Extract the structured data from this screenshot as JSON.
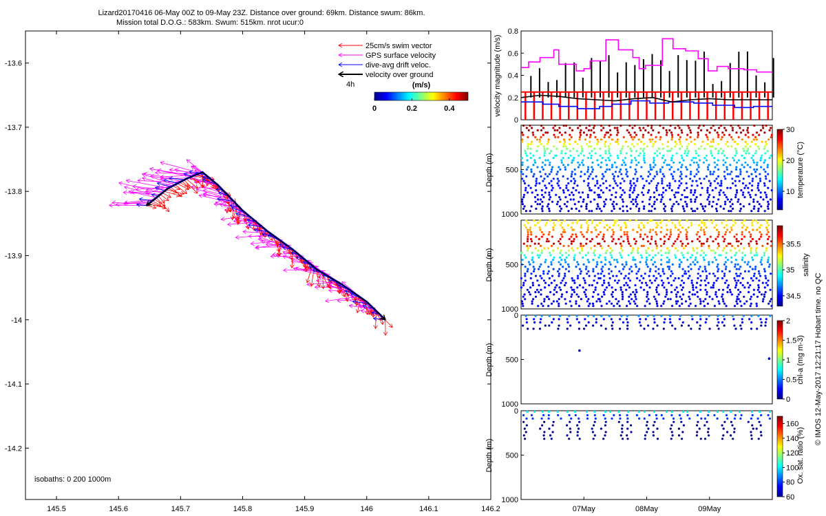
{
  "header": {
    "line1": "Lizard20170416 06-May 00Z to 09-May 23Z. Distance over ground: 69km. Distance swum: 86km.",
    "line2": "Mission total D.O.G.: 583km. Swum: 515km. nrot ucur:0"
  },
  "credit": "© IMOS 12-May-2017 12:21:17 Hobart time. no QC",
  "colors": {
    "swim": "#ff0000",
    "gps": "#ff00ff",
    "drift": "#0000ff",
    "ground": "#000000"
  },
  "chart_data": [
    {
      "type": "scatter",
      "panel": "map",
      "xlim": [
        145.45,
        146.2
      ],
      "ylim": [
        -14.28,
        -13.55
      ],
      "x_ticks": [
        145.5,
        145.6,
        145.7,
        145.8,
        145.9,
        146,
        146.1,
        146.2
      ],
      "x_tick_labels": [
        "145.5",
        "145.6",
        "145.7",
        "145.8",
        "145.9",
        "146",
        "146.1",
        "146.2"
      ],
      "y_ticks": [
        -13.6,
        -13.7,
        -13.8,
        -13.9,
        -14,
        -14.1,
        -14.2
      ],
      "y_tick_labels": [
        "-13.6",
        "-13.7",
        "-13.8",
        "-13.9",
        "-14",
        "-14.1",
        "-14.2"
      ],
      "legend": {
        "placement": "top-right",
        "items": [
          {
            "label": "25cm/s swim vector",
            "color": "#ff0000"
          },
          {
            "label": "GPS surface velocity",
            "color": "#ff00ff"
          },
          {
            "label": "dive-avg drift veloc.",
            "color": "#0000ff"
          },
          {
            "label": "velocity over ground",
            "color": "#000000"
          }
        ],
        "scale_label": "4h"
      },
      "colorbar": {
        "label": "(m/s)",
        "range": [
          0,
          0.5
        ],
        "ticks": [
          0,
          0.2,
          0.4
        ],
        "tick_labels": [
          "0",
          "0.2",
          "0.4"
        ]
      },
      "isobaths_label": "isobaths: 0   200  1000m",
      "track": {
        "lon": [
          145.645,
          145.68,
          145.71,
          145.735,
          145.76,
          145.8,
          145.84,
          145.88,
          145.92,
          145.96,
          146.0,
          146.03
        ],
        "lat": [
          -13.822,
          -13.795,
          -13.78,
          -13.77,
          -13.79,
          -13.83,
          -13.862,
          -13.89,
          -13.922,
          -13.945,
          -13.972,
          -14.0
        ]
      }
    },
    {
      "type": "line",
      "panel": "velocity",
      "ylabel": "velocity magnitude (m/s)",
      "ylim": [
        0,
        0.8
      ],
      "y_ticks": [
        0,
        0.2,
        0.4,
        0.6,
        0.8
      ],
      "y_tick_labels": [
        "0",
        "0.2",
        "0.4",
        "0.6",
        "0.8"
      ],
      "x_days": [
        0,
        4
      ],
      "series": [
        {
          "color": "#ff00ff",
          "x": [
            0.0,
            0.12,
            0.12,
            0.3,
            0.3,
            0.52,
            0.52,
            0.6,
            0.6,
            0.88,
            0.88,
            1.0,
            1.0,
            1.1,
            1.1,
            1.35,
            1.35,
            1.55,
            1.55,
            1.78,
            1.78,
            1.88,
            1.88,
            1.98,
            1.98,
            2.25,
            2.25,
            2.42,
            2.42,
            2.62,
            2.62,
            2.82,
            2.82,
            2.98,
            2.98,
            3.12,
            3.12,
            3.3,
            3.3,
            3.55,
            3.55,
            3.75,
            3.75,
            4.0
          ],
          "y": [
            0.47,
            0.47,
            0.52,
            0.52,
            0.56,
            0.56,
            0.63,
            0.63,
            0.5,
            0.5,
            0.44,
            0.44,
            0.46,
            0.46,
            0.53,
            0.53,
            0.72,
            0.72,
            0.63,
            0.63,
            0.56,
            0.56,
            0.46,
            0.46,
            0.49,
            0.49,
            0.73,
            0.73,
            0.64,
            0.64,
            0.62,
            0.62,
            0.55,
            0.55,
            0.44,
            0.44,
            0.48,
            0.48,
            0.46,
            0.46,
            0.45,
            0.45,
            0.43,
            0.43
          ]
        },
        {
          "color": "#0000ff",
          "x": [
            0.0,
            0.35,
            0.35,
            0.6,
            0.6,
            0.9,
            0.9,
            1.25,
            1.25,
            1.45,
            1.45,
            1.75,
            1.75,
            2.05,
            2.05,
            2.35,
            2.35,
            2.75,
            2.75,
            3.05,
            3.05,
            3.4,
            3.4,
            3.7,
            3.7,
            4.0
          ],
          "y": [
            0.16,
            0.16,
            0.14,
            0.14,
            0.12,
            0.12,
            0.1,
            0.1,
            0.12,
            0.12,
            0.14,
            0.14,
            0.17,
            0.17,
            0.15,
            0.15,
            0.16,
            0.16,
            0.15,
            0.15,
            0.13,
            0.13,
            0.11,
            0.11,
            0.12,
            0.12
          ]
        },
        {
          "color": "#000000",
          "x": [
            0.0,
            0.3,
            0.6,
            0.9,
            1.2,
            1.5,
            1.8,
            2.1,
            2.4,
            2.7,
            3.0,
            3.3,
            3.6,
            4.0
          ],
          "y": [
            0.2,
            0.22,
            0.21,
            0.19,
            0.18,
            0.17,
            0.19,
            0.2,
            0.16,
            0.18,
            0.19,
            0.18,
            0.18,
            0.18
          ]
        },
        {
          "color": "#ff0000",
          "x": [
            0.0,
            4.0
          ],
          "y": [
            0.25,
            0.25
          ]
        }
      ]
    },
    {
      "type": "scatter",
      "panel": "temperature",
      "ylabel": "Depth (m)",
      "ylim": [
        0,
        1000
      ],
      "y_ticks": [
        500,
        1000
      ],
      "y_tick_labels": [
        "500",
        "1000"
      ],
      "colorbar": {
        "label": "temperature (°C)",
        "range": [
          4,
          30
        ],
        "ticks": [
          10,
          20,
          30
        ],
        "tick_labels": [
          "10",
          "20",
          "30"
        ]
      },
      "profiles": 29,
      "max_depth": 990,
      "surface_value": 29,
      "deep_value": 5
    },
    {
      "type": "scatter",
      "panel": "salinity",
      "ylabel": "Depth (m)",
      "ylim": [
        0,
        1000
      ],
      "y_ticks": [
        500,
        1000
      ],
      "y_tick_labels": [
        "500",
        "1000"
      ],
      "colorbar": {
        "label": "salinity",
        "range": [
          34.3,
          35.85
        ],
        "ticks": [
          34.5,
          35,
          35.5
        ],
        "tick_labels": [
          "34.5",
          "35",
          "35.5"
        ]
      },
      "profiles": 29,
      "max_depth": 990
    },
    {
      "type": "scatter",
      "panel": "chl-a",
      "ylabel": "Depth (m)",
      "ylim": [
        0,
        1000
      ],
      "y_ticks": [
        0,
        500,
        1000
      ],
      "y_tick_labels": [
        "0",
        "500",
        "1000"
      ],
      "colorbar": {
        "label": "chl-a (mg m-3)",
        "range": [
          0,
          2
        ],
        "ticks": [
          0,
          0.5,
          1,
          1.5,
          2
        ],
        "tick_labels": [
          "0",
          "0.5",
          "1",
          "1.5",
          "2"
        ]
      },
      "profiles": 29,
      "max_depth": 170,
      "outliers": [
        {
          "day": 0.93,
          "depth": 400
        },
        {
          "day": 3.95,
          "depth": 490
        }
      ]
    },
    {
      "type": "scatter",
      "panel": "oxygen",
      "ylabel": "Depth (m)",
      "ylim": [
        0,
        1000
      ],
      "y_ticks": [
        0,
        500,
        1000
      ],
      "y_tick_labels": [
        "0",
        "500",
        "1000"
      ],
      "x_ticks": [
        1,
        2,
        3
      ],
      "x_tick_labels": [
        "07May",
        "08May",
        "09May"
      ],
      "colorbar": {
        "label": "Ox. sat. ratio (%)",
        "range": [
          60,
          170
        ],
        "ticks": [
          60,
          80,
          100,
          120,
          140,
          160
        ],
        "tick_labels": [
          "60",
          "80",
          "100",
          "120",
          "140",
          "160"
        ]
      },
      "profiles": 29,
      "max_depth": 320
    }
  ]
}
